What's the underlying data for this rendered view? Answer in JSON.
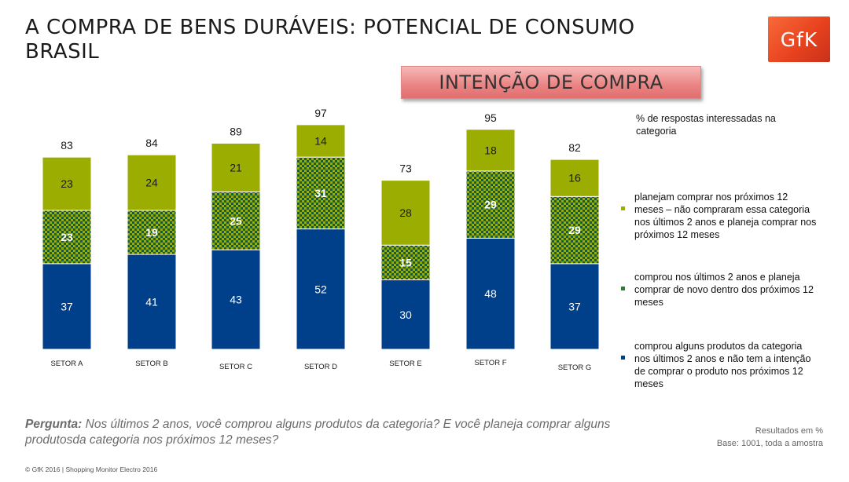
{
  "header": {
    "title_line1": "A COMPRA DE BENS DURÁVEIS: POTENCIAL DE CONSUMO",
    "title_line2": "BRASIL",
    "logo_text": "GfK",
    "banner_text": "INTENÇÃO DE COMPRA"
  },
  "legend": {
    "header": "% de respostas interessadas na categoria",
    "items": [
      {
        "label": "planejam comprar nos próximos 12 meses – não compraram essa categoria nos últimos 2 anos e planeja comprar nos próximos 12 meses",
        "color": "#9aad00"
      },
      {
        "label": "comprou nos últimos 2 anos e planeja comprar de novo dentro dos próximos 12 meses",
        "color": "#2e7d32"
      },
      {
        "label": "comprou alguns produtos da categoria nos últimos 2 anos e não tem a intenção de comprar o produto nos próximos 12 meses",
        "color": "#003f8a"
      }
    ]
  },
  "question": {
    "label": "Pergunta:",
    "text": " Nos últimos  2 anos, você comprou alguns produtos  da categoria? E você planeja comprar alguns produtosda categoria  nos próximos 12 meses?"
  },
  "results": {
    "line1": "Resultados  em %",
    "line2": "Base: 1001, toda a amostra"
  },
  "footer": "© GfK 2016 | Shopping Monitor Electro 2016",
  "chart_data": {
    "type": "bar",
    "stacked": true,
    "categories": [
      "SETOR A",
      "SETOR B",
      "SETOR C",
      "SETOR D",
      "SETOR E",
      "SETOR F",
      "SETOR G"
    ],
    "totals": [
      83,
      84,
      89,
      97,
      73,
      95,
      82
    ],
    "series": [
      {
        "values": [
          37,
          41,
          43,
          52,
          30,
          48,
          37
        ],
        "color": "#003f8a",
        "pattern": "solid"
      },
      {
        "values": [
          23,
          19,
          25,
          31,
          15,
          29,
          29
        ],
        "color": "#2e7d32",
        "pattern": "checker"
      },
      {
        "values": [
          23,
          24,
          21,
          14,
          28,
          18,
          16
        ],
        "color": "#9aad00",
        "pattern": "solid"
      }
    ],
    "ylim": [
      0,
      100
    ]
  }
}
